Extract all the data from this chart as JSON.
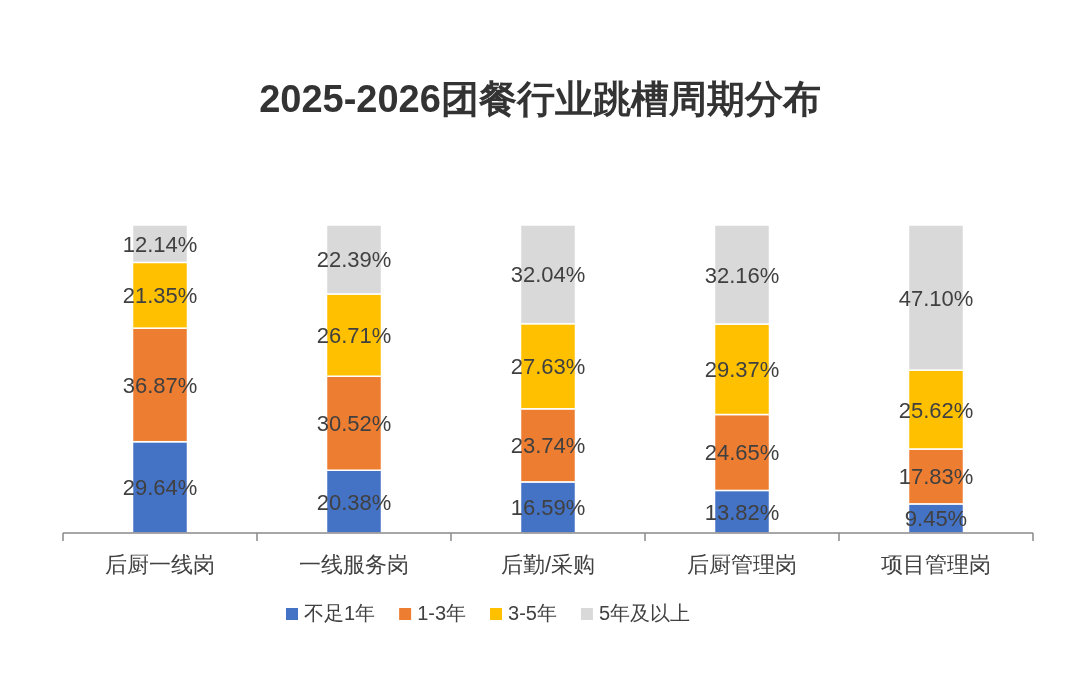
{
  "chart_data": {
    "type": "bar",
    "stacked": true,
    "title": "2025-2026团餐行业跳槽周期分布",
    "categories": [
      "后厨一线岗",
      "一线服务岗",
      "后勤/采购",
      "后厨管理岗",
      "项目管理岗"
    ],
    "legend": "bottom",
    "series": [
      {
        "name": "不足1年",
        "color": "#4472c4",
        "values": [
          29.64,
          20.38,
          16.59,
          13.82,
          9.45
        ],
        "value_labels": [
          "29.64%",
          "20.38%",
          "16.59%",
          "13.82%",
          "9.45%"
        ]
      },
      {
        "name": "1-3年",
        "color": "#ed7d31",
        "values": [
          36.87,
          30.52,
          23.74,
          24.65,
          17.83
        ],
        "value_labels": [
          "36.87%",
          "30.52%",
          "23.74%",
          "24.65%",
          "17.83%"
        ]
      },
      {
        "name": "3-5年",
        "color": "#ffc000",
        "values": [
          21.35,
          26.71,
          27.63,
          29.37,
          25.62
        ],
        "value_labels": [
          "21.35%",
          "26.71%",
          "27.63%",
          "29.37%",
          "25.62%"
        ]
      },
      {
        "name": "5年及以上",
        "color": "#d9d9d9",
        "values": [
          12.14,
          22.39,
          32.04,
          32.16,
          47.1
        ],
        "value_labels": [
          "12.14%",
          "22.39%",
          "32.04%",
          "32.16%",
          "47.10%"
        ]
      }
    ]
  }
}
